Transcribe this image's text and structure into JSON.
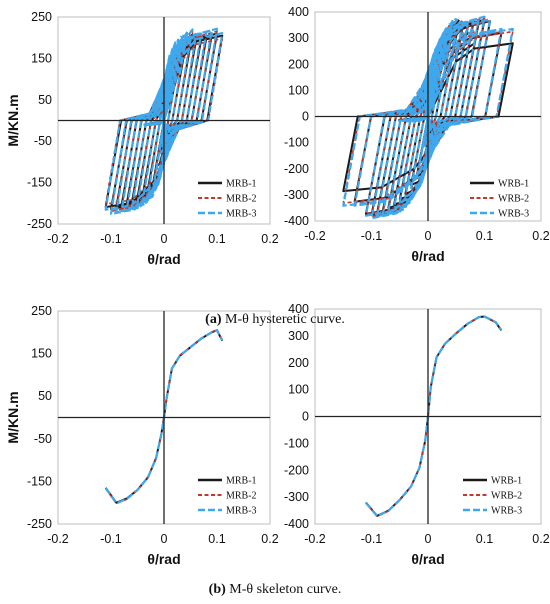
{
  "captions": {
    "a_label": "(a)",
    "a_text": " M-θ hysteretic curve.",
    "b_label": "(b)",
    "b_text": " M-θ skeleton curve."
  },
  "colors": {
    "series1": "#1a1a1a",
    "series2": "#c0392b",
    "series3": "#3ea8ee",
    "axis": "#222222"
  },
  "chart_data": [
    {
      "id": "a1",
      "type": "line",
      "subtype": "hysteresis",
      "xlabel": "θ/rad",
      "ylabel": "M/KN.m",
      "xlim": [
        -0.2,
        0.2
      ],
      "ylim": [
        -250,
        250
      ],
      "xticks": [
        "-0.2",
        "-0.1",
        "0",
        "0.1",
        "0.2"
      ],
      "yticks": [
        "250",
        "150",
        "50",
        "-50",
        "-150",
        "-250"
      ],
      "legend_position": "bottom-right",
      "amplitudes": [
        0.005,
        0.0075,
        0.01,
        0.015,
        0.02,
        0.03,
        0.04,
        0.05,
        0.06,
        0.07,
        0.08,
        0.09,
        0.1,
        0.11
      ],
      "series": [
        {
          "name": "MRB-1",
          "x": [
            0.0,
            0.02,
            0.04,
            0.06,
            0.08,
            0.1,
            0.11,
            0.13,
            0.15
          ],
          "y": [
            0,
            145,
            175,
            190,
            200,
            210,
            205,
            150,
            120
          ]
        },
        {
          "name": "MRB-2",
          "x": [
            0.0,
            0.02,
            0.04,
            0.06,
            0.08,
            0.1,
            0.11
          ],
          "y": [
            0,
            150,
            180,
            195,
            205,
            212,
            195
          ]
        },
        {
          "name": "MRB-3",
          "x": [
            0.0,
            0.02,
            0.04,
            0.06,
            0.08,
            0.1,
            0.11,
            0.13,
            0.15
          ],
          "y": [
            0,
            155,
            185,
            198,
            208,
            215,
            205,
            150,
            130
          ]
        }
      ]
    },
    {
      "id": "a2",
      "type": "line",
      "subtype": "hysteresis",
      "xlabel": "θ/rad",
      "ylabel": "",
      "xlim": [
        -0.2,
        0.2
      ],
      "ylim": [
        -400,
        400
      ],
      "xticks": [
        "-0.2",
        "-0.1",
        "0",
        "0.1",
        "0.2"
      ],
      "yticks": [
        "400",
        "300",
        "200",
        "100",
        "0",
        "-100",
        "-200",
        "-300",
        "-400"
      ],
      "legend_position": "bottom-right",
      "amplitudes": [
        0.005,
        0.0075,
        0.01,
        0.015,
        0.02,
        0.03,
        0.04,
        0.05,
        0.06,
        0.07,
        0.08,
        0.09,
        0.1,
        0.11,
        0.13,
        0.15
      ],
      "series": [
        {
          "name": "WRB-1",
          "x": [
            0.0,
            0.02,
            0.04,
            0.06,
            0.08,
            0.1,
            0.12,
            0.13,
            0.15
          ],
          "y": [
            0,
            225,
            290,
            330,
            355,
            370,
            360,
            320,
            280
          ]
        },
        {
          "name": "WRB-2",
          "x": [
            0.0,
            0.02,
            0.04,
            0.06,
            0.08,
            0.1,
            0.12,
            0.13
          ],
          "y": [
            0,
            230,
            295,
            335,
            360,
            372,
            350,
            320
          ]
        },
        {
          "name": "WRB-3",
          "x": [
            0.0,
            0.02,
            0.04,
            0.06,
            0.08,
            0.1,
            0.12,
            0.13
          ],
          "y": [
            0,
            228,
            292,
            332,
            358,
            371,
            352,
            325
          ]
        }
      ]
    },
    {
      "id": "b1",
      "type": "line",
      "subtype": "skeleton",
      "xlabel": "θ/rad",
      "ylabel": "M/KN.m",
      "xlim": [
        -0.2,
        0.2
      ],
      "ylim": [
        -250,
        250
      ],
      "xticks": [
        "-0.2",
        "-0.1",
        "0",
        "0.1",
        "0.2"
      ],
      "yticks": [
        "250",
        "150",
        "50",
        "-50",
        "-150",
        "-250"
      ],
      "legend_position": "bottom-right",
      "series": [
        {
          "name": "MRB-1",
          "x": [
            -0.11,
            -0.09,
            -0.07,
            -0.05,
            -0.03,
            -0.015,
            -0.005,
            0,
            0.005,
            0.015,
            0.03,
            0.05,
            0.07,
            0.09,
            0.1,
            0.11
          ],
          "y": [
            -165,
            -200,
            -190,
            -170,
            -140,
            -95,
            -40,
            0,
            45,
            115,
            145,
            165,
            185,
            200,
            205,
            180
          ]
        },
        {
          "name": "MRB-2",
          "x": [
            -0.11,
            -0.09,
            -0.07,
            -0.05,
            -0.03,
            -0.015,
            -0.005,
            0,
            0.005,
            0.015,
            0.03,
            0.05,
            0.07,
            0.09,
            0.1,
            0.11
          ],
          "y": [
            -167,
            -202,
            -192,
            -171,
            -141,
            -96,
            -41,
            0,
            46,
            116,
            146,
            166,
            186,
            201,
            206,
            182
          ]
        },
        {
          "name": "MRB-3",
          "x": [
            -0.11,
            -0.09,
            -0.07,
            -0.05,
            -0.03,
            -0.015,
            -0.005,
            0,
            0.005,
            0.015,
            0.03,
            0.05,
            0.07,
            0.09,
            0.1,
            0.11
          ],
          "y": [
            -166,
            -201,
            -191,
            -170,
            -140,
            -95,
            -40,
            0,
            45,
            115,
            145,
            165,
            185,
            200,
            205,
            181
          ]
        }
      ]
    },
    {
      "id": "b2",
      "type": "line",
      "subtype": "skeleton",
      "xlabel": "θ/rad",
      "ylabel": "",
      "xlim": [
        -0.2,
        0.2
      ],
      "ylim": [
        -400,
        400
      ],
      "xticks": [
        "-0.2",
        "-0.1",
        "0",
        "0.1",
        "0.2"
      ],
      "yticks": [
        "400",
        "300",
        "200",
        "100",
        "0",
        "-100",
        "-200",
        "-300",
        "-400"
      ],
      "legend_position": "bottom-right",
      "series": [
        {
          "name": "WRB-1",
          "x": [
            -0.11,
            -0.09,
            -0.07,
            -0.05,
            -0.03,
            -0.015,
            -0.005,
            0,
            0.005,
            0.015,
            0.03,
            0.05,
            0.07,
            0.09,
            0.1,
            0.12,
            0.13
          ],
          "y": [
            -320,
            -370,
            -350,
            -310,
            -260,
            -190,
            -90,
            0,
            110,
            220,
            270,
            310,
            345,
            370,
            372,
            350,
            320
          ]
        },
        {
          "name": "WRB-2",
          "x": [
            -0.11,
            -0.09,
            -0.07,
            -0.05,
            -0.03,
            -0.015,
            -0.005,
            0,
            0.005,
            0.015,
            0.03,
            0.05,
            0.07,
            0.09,
            0.1,
            0.12,
            0.13
          ],
          "y": [
            -322,
            -372,
            -352,
            -311,
            -261,
            -191,
            -91,
            0,
            111,
            221,
            271,
            311,
            346,
            371,
            373,
            352,
            322
          ]
        },
        {
          "name": "WRB-3",
          "x": [
            -0.11,
            -0.09,
            -0.07,
            -0.05,
            -0.03,
            -0.015,
            -0.005,
            0,
            0.005,
            0.015,
            0.03,
            0.05,
            0.07,
            0.09,
            0.1,
            0.12,
            0.13
          ],
          "y": [
            -321,
            -371,
            -351,
            -310,
            -260,
            -190,
            -90,
            0,
            110,
            220,
            270,
            310,
            345,
            370,
            372,
            351,
            321
          ]
        }
      ]
    }
  ]
}
